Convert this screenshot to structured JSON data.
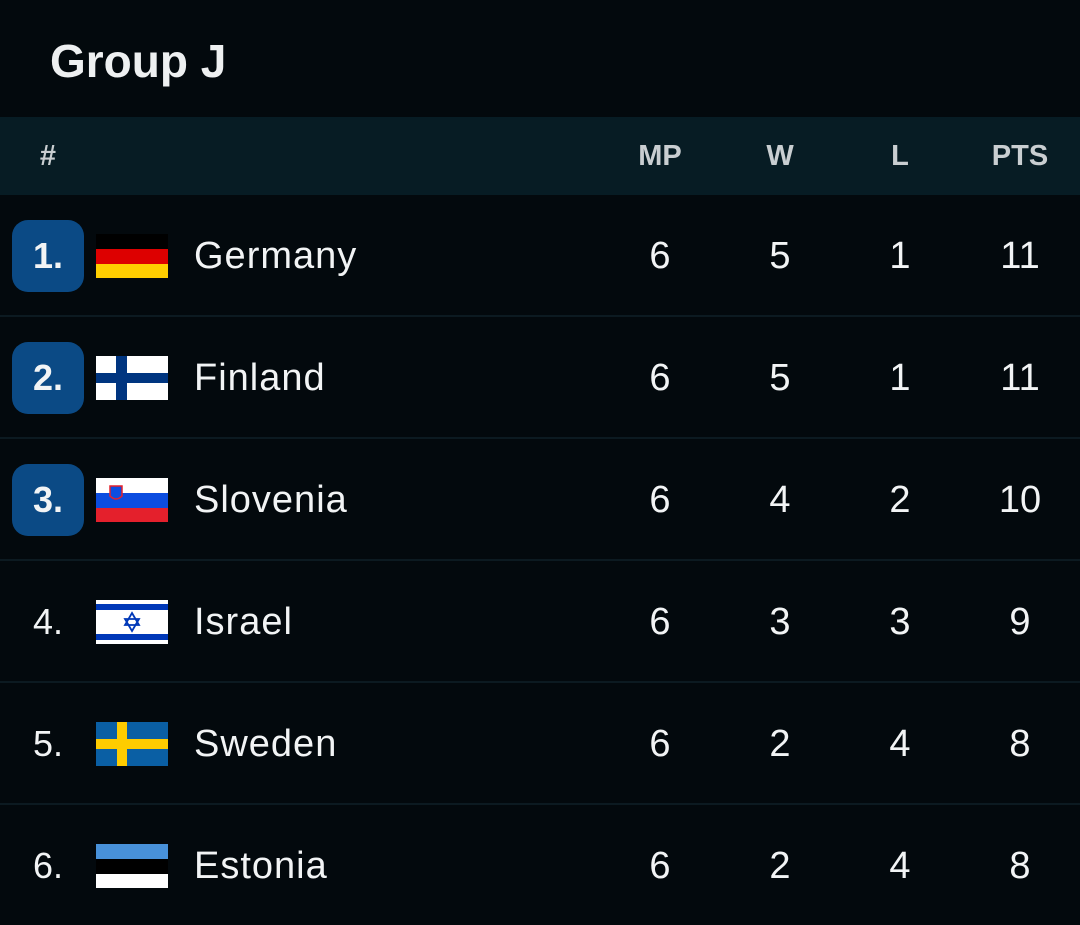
{
  "header": {
    "title": "Group J",
    "columns": [
      "#",
      "MP",
      "W",
      "L",
      "PTS"
    ]
  },
  "table": {
    "rows": [
      {
        "rank": "1.",
        "team": "Germany",
        "mp": 6,
        "w": 5,
        "l": 1,
        "pts": 11,
        "highlight": true
      },
      {
        "rank": "2.",
        "team": "Finland",
        "mp": 6,
        "w": 5,
        "l": 1,
        "pts": 11,
        "highlight": true
      },
      {
        "rank": "3.",
        "team": "Slovenia",
        "mp": 6,
        "w": 4,
        "l": 2,
        "pts": 10,
        "highlight": true
      },
      {
        "rank": "4.",
        "team": "Israel",
        "mp": 6,
        "w": 3,
        "l": 3,
        "pts": 9,
        "highlight": false
      },
      {
        "rank": "5.",
        "team": "Sweden",
        "mp": 6,
        "w": 2,
        "l": 4,
        "pts": 8,
        "highlight": false
      },
      {
        "rank": "6.",
        "team": "Estonia",
        "mp": 6,
        "w": 2,
        "l": 4,
        "pts": 8,
        "highlight": false
      }
    ]
  }
}
